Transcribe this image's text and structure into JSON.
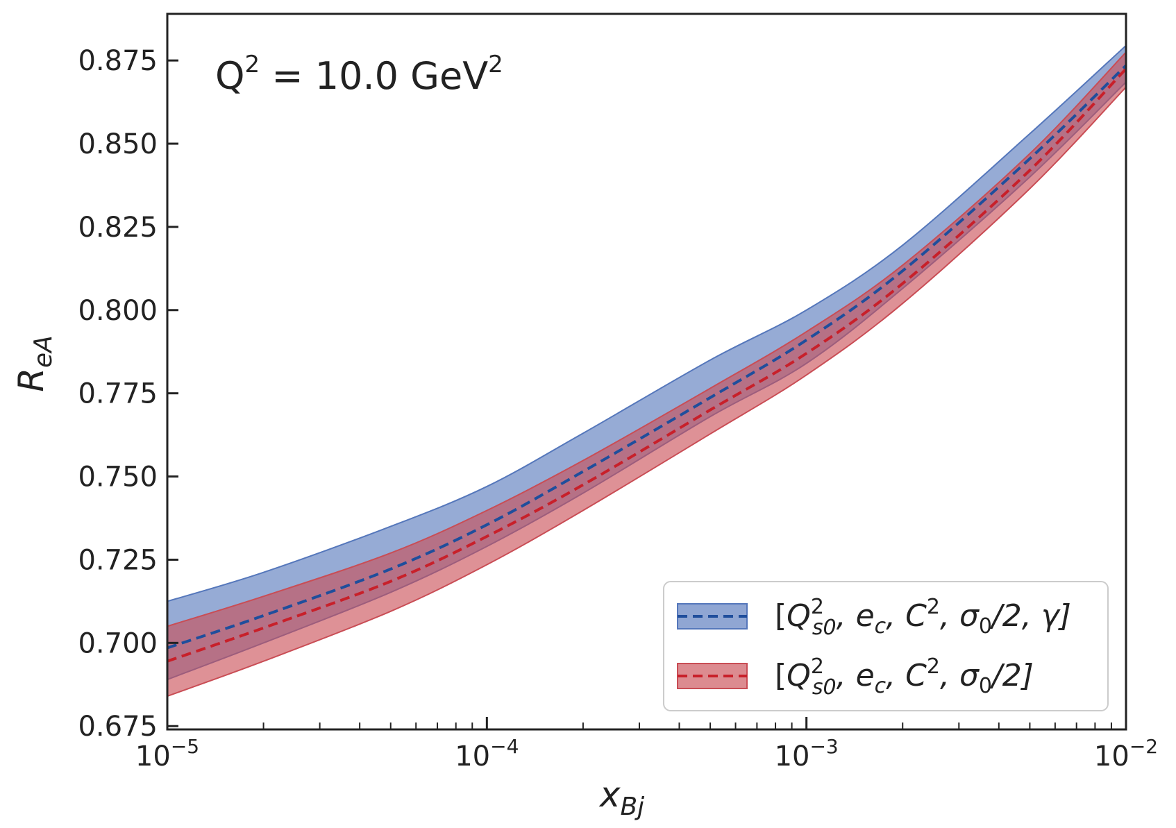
{
  "chart_data": {
    "type": "line",
    "title": "",
    "annotation": {
      "base": "Q",
      "exp": "2",
      "mid": " = 10.0 GeV",
      "unit_exp": "2"
    },
    "xlabel": {
      "main": "x",
      "sub": "Bj"
    },
    "ylabel": {
      "main": "R",
      "sub": "eA"
    },
    "xscale": "log",
    "xlim": [
      1e-05,
      0.01
    ],
    "ylim": [
      0.674,
      0.889
    ],
    "x_ticks": [
      {
        "value": 1e-05,
        "base": "10",
        "exp": "−5"
      },
      {
        "value": 0.0001,
        "base": "10",
        "exp": "−4"
      },
      {
        "value": 0.001,
        "base": "10",
        "exp": "−3"
      },
      {
        "value": 0.01,
        "base": "10",
        "exp": "−2"
      }
    ],
    "y_ticks": [
      0.675,
      0.7,
      0.725,
      0.75,
      0.775,
      0.8,
      0.825,
      0.85,
      0.875
    ],
    "y_tick_labels": [
      "0.675",
      "0.700",
      "0.725",
      "0.750",
      "0.775",
      "0.800",
      "0.825",
      "0.850",
      "0.875"
    ],
    "x": [
      1e-05,
      2e-05,
      5e-05,
      0.0001,
      0.0002,
      0.0005,
      0.001,
      0.002,
      0.005,
      0.01
    ],
    "series": [
      {
        "name": "blue",
        "color": "#1f4e9c",
        "band_color": "#5577bb",
        "values": [
          0.6985,
          0.7082,
          0.7222,
          0.7355,
          0.7515,
          0.7737,
          0.791,
          0.8118,
          0.8455,
          0.8735
        ],
        "upper": [
          0.7125,
          0.7212,
          0.735,
          0.747,
          0.763,
          0.785,
          0.8,
          0.8195,
          0.853,
          0.8795
        ],
        "lower": [
          0.689,
          0.7,
          0.7152,
          0.729,
          0.745,
          0.768,
          0.784,
          0.8065,
          0.84,
          0.8685
        ],
        "legend": {
          "open": "[",
          "q": "Q",
          "q_sup": "2",
          "q_sub": "s0",
          "e": ", e",
          "e_sub": "c",
          "c": ", C",
          "c_sup": "2",
          "s": ", σ",
          "s_sub": "0",
          "rest": "/2, γ]"
        }
      },
      {
        "name": "red",
        "color": "#c8202a",
        "band_color": "#c94d55",
        "values": [
          0.6945,
          0.7045,
          0.7185,
          0.732,
          0.7475,
          0.77,
          0.787,
          0.808,
          0.842,
          0.8725
        ],
        "upper": [
          0.705,
          0.714,
          0.727,
          0.7398,
          0.7548,
          0.7765,
          0.7935,
          0.8135,
          0.847,
          0.8775
        ],
        "lower": [
          0.684,
          0.6945,
          0.7095,
          0.7235,
          0.7398,
          0.7628,
          0.7805,
          0.802,
          0.8365,
          0.867
        ],
        "legend": {
          "open": "[",
          "q": "Q",
          "q_sup": "2",
          "q_sub": "s0",
          "e": ", e",
          "e_sub": "c",
          "c": ", C",
          "c_sup": "2",
          "s": ", σ",
          "s_sub": "0",
          "rest": "/2]"
        }
      }
    ],
    "legend_position": "lower-right",
    "grid": false
  }
}
